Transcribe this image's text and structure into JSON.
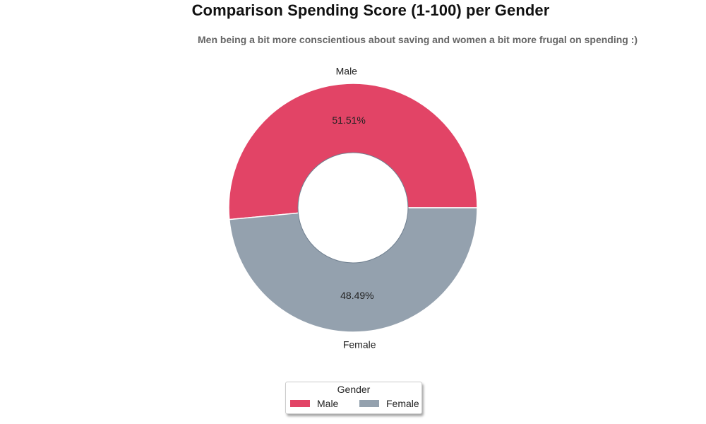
{
  "chart_data": {
    "type": "pie",
    "donut": true,
    "title": "Comparison Spending Score (1-100) per Gender",
    "subtitle": "Men being a bit more conscientious about saving and women a bit more frugal on spending :)",
    "slices": [
      {
        "label": "Male",
        "value": 51.51,
        "pct_label": "51.51%",
        "color": "#e24466"
      },
      {
        "label": "Female",
        "value": 48.49,
        "pct_label": "48.49%",
        "color": "#94a1ae"
      }
    ],
    "legend": {
      "title": "Gender",
      "placement": "bottom-center",
      "entries": [
        "Male",
        "Female"
      ]
    }
  }
}
